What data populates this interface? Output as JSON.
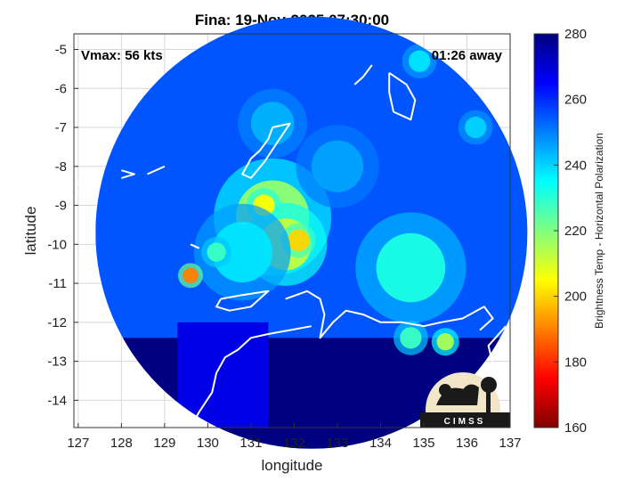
{
  "chart_data": {
    "type": "heatmap",
    "title": "Fina: 19-Nov-2025 07:30:00",
    "xlabel": "longitude",
    "ylabel": "latitude",
    "xlim": [
      126.9,
      137
    ],
    "ylim": [
      -14.7,
      -4.6
    ],
    "xticks": [
      127,
      128,
      129,
      130,
      131,
      132,
      133,
      134,
      135,
      136,
      137
    ],
    "yticks": [
      -5,
      -6,
      -7,
      -8,
      -9,
      -10,
      -11,
      -12,
      -13,
      -14
    ],
    "grid": true,
    "annotations": {
      "vmax": "Vmax: 56 kts",
      "away": "01:26 away"
    },
    "colorbar": {
      "label": "Brightness Temp - Horizontal Polarization",
      "range": [
        160,
        280
      ],
      "ticks": [
        160,
        180,
        200,
        220,
        240,
        260,
        280
      ],
      "colormap": "jet_reversed"
    },
    "storm_center": {
      "lon": 132.4,
      "lat": -9.7
    },
    "swath_radius_deg": 5.0,
    "features": [
      {
        "lon": 131.5,
        "lat": -9.3,
        "tb": 218,
        "r": 0.85
      },
      {
        "lon": 131.8,
        "lat": -10.0,
        "tb": 212,
        "r": 0.6
      },
      {
        "lon": 131.3,
        "lat": -9.0,
        "tb": 205,
        "r": 0.25
      },
      {
        "lon": 132.1,
        "lat": -9.9,
        "tb": 200,
        "r": 0.25
      },
      {
        "lon": 130.8,
        "lat": -10.2,
        "tb": 238,
        "r": 0.7
      },
      {
        "lon": 134.7,
        "lat": -10.6,
        "tb": 232,
        "r": 0.8
      },
      {
        "lon": 129.6,
        "lat": -10.8,
        "tb": 190,
        "r": 0.18
      },
      {
        "lon": 130.2,
        "lat": -10.2,
        "tb": 228,
        "r": 0.22
      },
      {
        "lon": 135.5,
        "lat": -12.5,
        "tb": 215,
        "r": 0.2
      },
      {
        "lon": 134.7,
        "lat": -12.4,
        "tb": 228,
        "r": 0.25
      },
      {
        "lon": 134.9,
        "lat": -5.3,
        "tb": 238,
        "r": 0.25
      },
      {
        "lon": 136.2,
        "lat": -7.0,
        "tb": 240,
        "r": 0.25
      },
      {
        "lon": 131.5,
        "lat": -6.9,
        "tb": 244,
        "r": 0.5
      },
      {
        "lon": 133.0,
        "lat": -8.0,
        "tb": 246,
        "r": 0.6
      }
    ],
    "warm_land_region": {
      "lat_below": -12.4,
      "tb": 280
    },
    "cold_ocean_tb": 255
  },
  "logo": {
    "text": "CIMSS"
  },
  "colors": {
    "coast": "#ffffff",
    "grid": "#d8d8d8",
    "axis": "#333333",
    "outside": "#ffffff"
  }
}
